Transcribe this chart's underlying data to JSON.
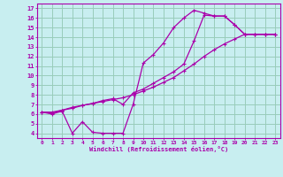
{
  "xlabel": "Windchill (Refroidissement éolien,°C)",
  "line_color": "#aa00aa",
  "bg_color": "#c8eef0",
  "grid_color": "#99ccbb",
  "xlim": [
    -0.5,
    23.5
  ],
  "ylim": [
    3.5,
    17.5
  ],
  "xticks": [
    0,
    1,
    2,
    3,
    4,
    5,
    6,
    7,
    8,
    9,
    10,
    11,
    12,
    13,
    14,
    15,
    16,
    17,
    18,
    19,
    20,
    21,
    22,
    23
  ],
  "yticks": [
    4,
    5,
    6,
    7,
    8,
    9,
    10,
    11,
    12,
    13,
    14,
    15,
    16,
    17
  ],
  "line1_x": [
    0,
    1,
    2,
    3,
    4,
    5,
    6,
    7,
    8,
    9,
    10,
    11,
    12,
    13,
    14,
    15,
    16,
    17,
    18,
    19,
    20,
    21,
    22,
    23
  ],
  "line1_y": [
    6.2,
    6.0,
    6.3,
    4.0,
    5.2,
    4.1,
    4.0,
    4.0,
    4.0,
    7.0,
    11.3,
    12.2,
    13.4,
    15.0,
    16.0,
    16.8,
    16.5,
    16.2,
    16.2,
    15.3,
    14.3,
    14.3,
    14.3,
    14.3
  ],
  "line2_x": [
    0,
    1,
    2,
    3,
    4,
    5,
    6,
    7,
    8,
    9,
    10,
    11,
    12,
    13,
    14,
    15,
    16,
    17,
    18,
    19,
    20,
    21,
    22,
    23
  ],
  "line2_y": [
    6.2,
    6.2,
    6.4,
    6.6,
    6.9,
    7.1,
    7.3,
    7.5,
    7.7,
    8.0,
    8.4,
    8.8,
    9.3,
    9.8,
    10.5,
    11.2,
    12.0,
    12.7,
    13.3,
    13.8,
    14.3,
    14.3,
    14.3,
    14.3
  ],
  "line3_x": [
    0,
    1,
    2,
    3,
    4,
    5,
    6,
    7,
    8,
    9,
    10,
    11,
    12,
    13,
    14,
    15,
    16,
    17,
    18,
    19,
    20,
    21,
    22,
    23
  ],
  "line3_y": [
    6.2,
    6.1,
    6.4,
    6.7,
    6.9,
    7.1,
    7.4,
    7.6,
    7.0,
    8.2,
    8.6,
    9.2,
    9.8,
    10.4,
    11.2,
    13.6,
    16.3,
    16.2,
    16.2,
    15.3,
    14.3,
    14.3,
    14.3,
    14.3
  ]
}
